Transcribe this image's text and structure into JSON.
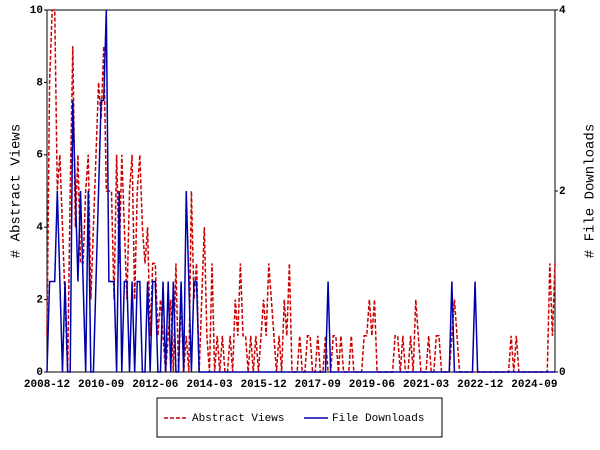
{
  "chart_data": {
    "type": "line",
    "y_label": "# Abstract Views",
    "y2_label": "# File Downloads",
    "categories": [
      "2008-12",
      null,
      null,
      null,
      null,
      null,
      null,
      null,
      null,
      null,
      null,
      null,
      null,
      null,
      null,
      null,
      null,
      null,
      null,
      null,
      null,
      "2010-09",
      null,
      null,
      null,
      null,
      null,
      null,
      null,
      null,
      null,
      null,
      null,
      null,
      null,
      null,
      null,
      null,
      null,
      null,
      null,
      null,
      "2012-06",
      null,
      null,
      null,
      null,
      null,
      null,
      null,
      null,
      null,
      null,
      null,
      null,
      null,
      null,
      null,
      null,
      null,
      null,
      null,
      null,
      "2014-03",
      null,
      null,
      null,
      null,
      null,
      null,
      null,
      null,
      null,
      null,
      null,
      null,
      null,
      null,
      null,
      null,
      null,
      null,
      null,
      null,
      "2015-12",
      null,
      null,
      null,
      null,
      null,
      null,
      null,
      null,
      null,
      null,
      null,
      null,
      null,
      null,
      null,
      null,
      null,
      null,
      null,
      null,
      "2017-09",
      null,
      null,
      null,
      null,
      null,
      null,
      null,
      null,
      null,
      null,
      null,
      null,
      null,
      null,
      null,
      null,
      null,
      null,
      null,
      null,
      "2019-06",
      null,
      null,
      null,
      null,
      null,
      null,
      null,
      null,
      null,
      null,
      null,
      null,
      null,
      null,
      null,
      null,
      null,
      null,
      null,
      null,
      "2021-03",
      null,
      null,
      null,
      null,
      null,
      null,
      null,
      null,
      null,
      null,
      null,
      null,
      null,
      null,
      null,
      null,
      null,
      null,
      null,
      null,
      "2022-12",
      null,
      null,
      null,
      null,
      null,
      null,
      null,
      null,
      null,
      null,
      null,
      null,
      null,
      null,
      null,
      null,
      null,
      null,
      null,
      null,
      "2024-09",
      null,
      null,
      null,
      null,
      null,
      null,
      null,
      null
    ],
    "series": [
      {
        "name": "Abstract Views",
        "color": "#cc0000",
        "dash": true,
        "values": [
          1,
          8,
          10,
          10,
          5,
          6,
          4,
          2,
          0,
          5,
          9,
          4,
          6,
          3,
          3,
          5,
          6,
          2,
          4,
          6,
          8,
          7,
          9,
          5,
          5,
          5,
          2,
          6,
          3,
          6,
          4,
          2,
          5,
          6,
          2,
          5,
          6,
          4,
          3,
          4,
          1,
          3,
          3,
          1,
          2,
          1,
          0,
          1,
          2,
          0,
          3,
          0,
          2,
          0,
          1,
          0,
          5,
          2,
          3,
          0,
          2,
          4,
          1,
          0,
          3,
          0,
          1,
          0,
          1,
          0,
          0,
          1,
          0,
          2,
          1,
          3,
          1,
          1,
          0,
          1,
          0,
          1,
          0,
          1,
          2,
          1,
          3,
          2,
          1,
          0,
          1,
          0,
          2,
          1,
          3,
          0,
          0,
          0,
          1,
          0,
          0,
          1,
          1,
          0,
          0,
          1,
          0,
          0,
          1,
          0,
          0,
          1,
          1,
          0,
          1,
          0,
          0,
          0,
          1,
          0,
          0,
          0,
          0,
          1,
          1,
          2,
          1,
          2,
          0,
          0,
          0,
          0,
          0,
          0,
          0,
          1,
          1,
          0,
          1,
          0,
          0,
          1,
          0,
          2,
          1,
          0,
          0,
          0,
          1,
          0,
          0,
          1,
          1,
          0,
          0,
          0,
          0,
          1,
          2,
          1,
          0,
          0,
          0,
          0,
          0,
          0,
          0,
          0,
          0,
          0,
          0,
          0,
          0,
          0,
          0,
          0,
          0,
          0,
          0,
          0,
          1,
          0,
          1,
          0,
          0,
          0,
          0,
          0,
          0,
          0,
          0,
          0,
          0,
          0,
          0,
          3,
          1,
          3
        ]
      },
      {
        "name": "File Downloads",
        "color": "#0000aa",
        "axis": "y2",
        "values": [
          0,
          1,
          1,
          1,
          2,
          1,
          0,
          1,
          0,
          0,
          3,
          2,
          1,
          2,
          1,
          0,
          2,
          0,
          0,
          1,
          2,
          3,
          3,
          4,
          1,
          1,
          1,
          0,
          2,
          0,
          1,
          1,
          0,
          1,
          0,
          1,
          1,
          0,
          0,
          1,
          0,
          1,
          1,
          0,
          0,
          1,
          0,
          1,
          0,
          1,
          0,
          0,
          1,
          0,
          2,
          1,
          0,
          1,
          1,
          0,
          0,
          0,
          0,
          0,
          0,
          0,
          0,
          0,
          0,
          0,
          0,
          0,
          0,
          0,
          0,
          0,
          0,
          0,
          0,
          0,
          0,
          0,
          0,
          0,
          0,
          0,
          0,
          0,
          0,
          0,
          0,
          0,
          0,
          0,
          0,
          0,
          0,
          0,
          0,
          0,
          0,
          0,
          0,
          0,
          0,
          0,
          0,
          0,
          0,
          1,
          0,
          0,
          0,
          0,
          0,
          0,
          0,
          0,
          0,
          0,
          0,
          0,
          0,
          0,
          0,
          0,
          0,
          0,
          0,
          0,
          0,
          0,
          0,
          0,
          0,
          0,
          0,
          0,
          0,
          0,
          0,
          0,
          0,
          0,
          0,
          0,
          0,
          0,
          0,
          0,
          0,
          0,
          0,
          0,
          0,
          0,
          0,
          1,
          0,
          0,
          0,
          0,
          0,
          0,
          0,
          0,
          1,
          0,
          0,
          0,
          0,
          0,
          0,
          0,
          0,
          0,
          0,
          0,
          0,
          0,
          0,
          0,
          0,
          0,
          0,
          0,
          0,
          0,
          0,
          0,
          0,
          0,
          0,
          0,
          0,
          0,
          0,
          0
        ]
      }
    ],
    "ylim": [
      0,
      10
    ],
    "yticks": [
      0,
      2,
      4,
      6,
      8,
      10
    ],
    "y2lim": [
      0,
      4
    ],
    "y2ticks": [
      0,
      2,
      4
    ],
    "legend": "bottom"
  }
}
